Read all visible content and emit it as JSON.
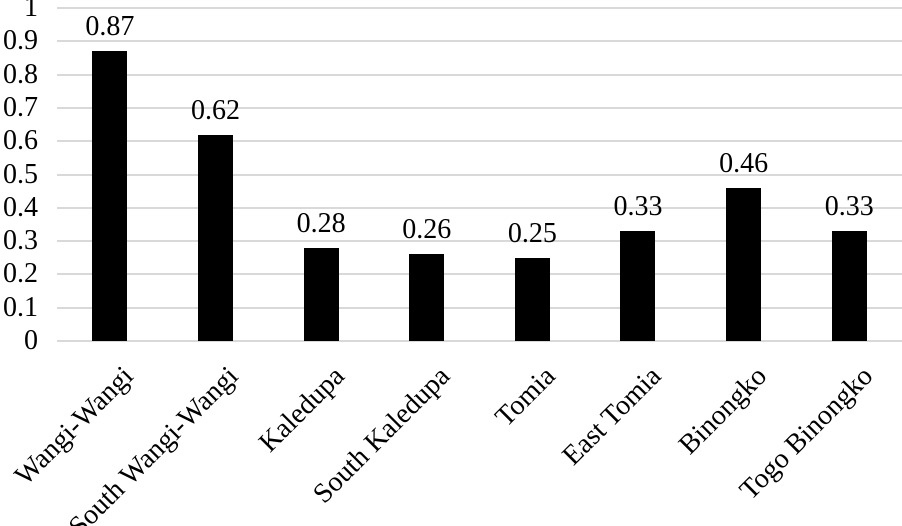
{
  "chart_data": {
    "type": "bar",
    "categories": [
      "Wangi-Wangi",
      "South Wangi-Wangi",
      "Kaledupa",
      "South Kaledupa",
      "Tomia",
      "East Tomia",
      "Binongko",
      "Togo Binongko"
    ],
    "values": [
      0.87,
      0.62,
      0.28,
      0.26,
      0.25,
      0.33,
      0.46,
      0.33
    ],
    "data_labels": [
      "0.87",
      "0.62",
      "0.28",
      "0.26",
      "0.25",
      "0.33",
      "0.46",
      "0.33"
    ],
    "title": "",
    "xlabel": "",
    "ylabel": "",
    "ylim": [
      0,
      1
    ],
    "yticks": [
      "1",
      "0.9",
      "0.8",
      "0.7",
      "0.6",
      "0.5",
      "0.4",
      "0.3",
      "0.2",
      "0.1",
      "0"
    ],
    "grid": true,
    "legend": false,
    "category_label_rotation_deg": 45,
    "bar_color": "#000000",
    "gridline_color": "#d9d9d9",
    "text_color": "#000000",
    "background_color": "#ffffff"
  }
}
